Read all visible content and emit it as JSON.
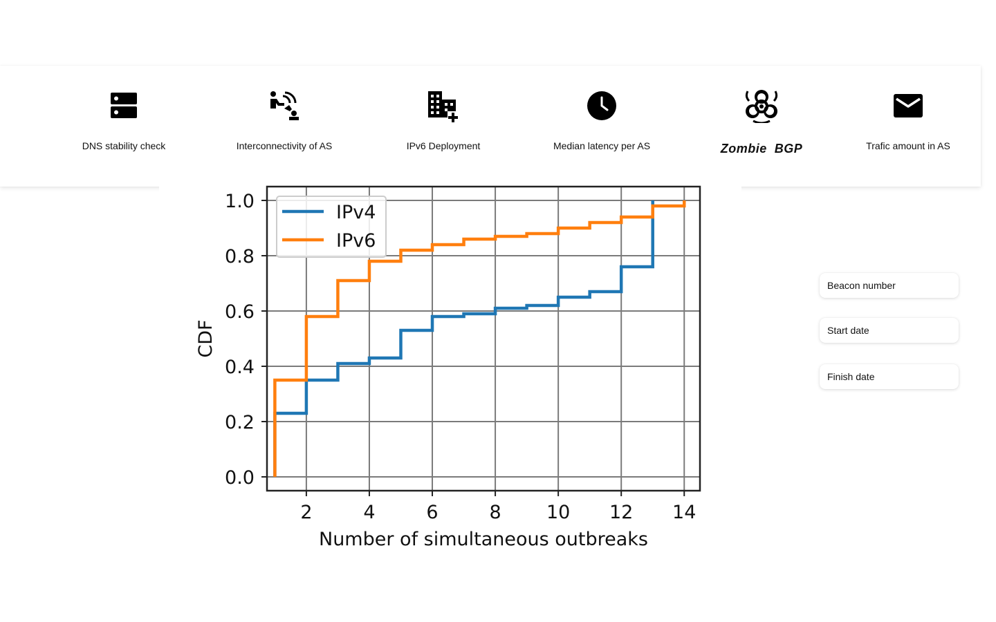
{
  "nav": {
    "items": [
      {
        "label": "DNS stability check",
        "icon": "dns-server-icon"
      },
      {
        "label": "Interconnectivity of AS",
        "icon": "network-connection-icon"
      },
      {
        "label": "IPv6 Deployment",
        "icon": "building-add-icon"
      },
      {
        "label": "Median latency per AS",
        "icon": "clock-icon"
      },
      {
        "label": "Zombie  BGP",
        "icon": "biohazard-icon",
        "active": true
      },
      {
        "label": "Trafic amount in AS",
        "icon": "mail-icon"
      }
    ]
  },
  "form": {
    "beacon_placeholder": "Beacon number",
    "start_placeholder": "Start date",
    "finish_placeholder": "Finish date"
  },
  "chart_data": {
    "type": "line",
    "step": true,
    "title": "",
    "xlabel": "Number of simultaneous outbreaks",
    "ylabel": "CDF",
    "xlim": [
      0.75,
      14.5
    ],
    "ylim": [
      -0.05,
      1.05
    ],
    "xticks": [
      2,
      4,
      6,
      8,
      10,
      12,
      14
    ],
    "yticks": [
      "0.0",
      "0.2",
      "0.4",
      "0.6",
      "0.8",
      "1.0"
    ],
    "grid": true,
    "legend": "top-left",
    "series": [
      {
        "name": "IPv4",
        "color": "#1f77b4",
        "x": [
          1,
          2,
          3,
          4,
          5,
          6,
          7,
          8,
          9,
          10,
          11,
          12,
          13
        ],
        "y": [
          0.23,
          0.35,
          0.41,
          0.43,
          0.53,
          0.58,
          0.59,
          0.61,
          0.62,
          0.65,
          0.67,
          0.76,
          1.0
        ]
      },
      {
        "name": "IPv6",
        "color": "#ff7f0e",
        "x": [
          1,
          2,
          3,
          4,
          5,
          6,
          7,
          8,
          9,
          10,
          11,
          12,
          13,
          14
        ],
        "y": [
          0.35,
          0.58,
          0.71,
          0.78,
          0.82,
          0.84,
          0.86,
          0.87,
          0.88,
          0.9,
          0.92,
          0.94,
          0.98,
          1.0
        ]
      }
    ]
  }
}
